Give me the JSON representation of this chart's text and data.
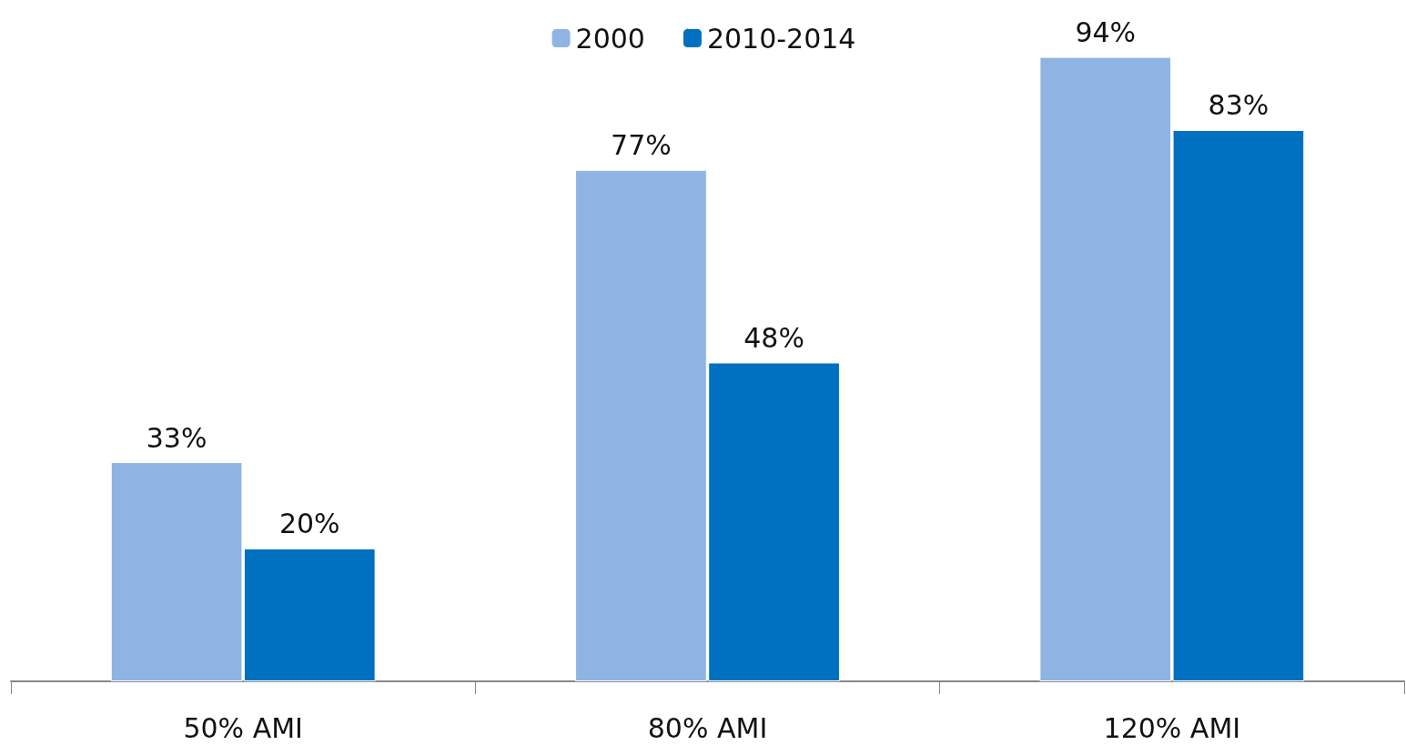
{
  "chart_data": {
    "type": "bar",
    "categories": [
      "50% AMI",
      "80% AMI",
      "120% AMI"
    ],
    "series": [
      {
        "name": "2000",
        "color": "#8fb4e3",
        "values": [
          33,
          77,
          94
        ],
        "value_labels": [
          "33%",
          "77%",
          "94%"
        ]
      },
      {
        "name": "2010-2014",
        "color": "#0070c0",
        "values": [
          20,
          48,
          83
        ],
        "value_labels": [
          "20%",
          "48%",
          "83%"
        ]
      }
    ],
    "legend": "top",
    "grid": false
  }
}
